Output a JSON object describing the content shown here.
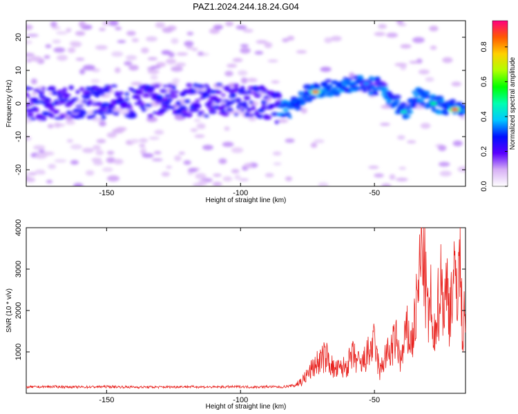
{
  "title": "PAZ1.2024.244.18.24.G04",
  "chart_data": [
    {
      "type": "heatmap",
      "xlabel": "Height of straight line (km)",
      "ylabel": "Frequency (Hz)",
      "xlim": [
        -180,
        -16
      ],
      "ylim": [
        -25,
        25
      ],
      "xticks": [
        -150,
        -100,
        -50
      ],
      "yticks": [
        -20,
        -10,
        0,
        10,
        20
      ],
      "colorbar": {
        "label": "Normalized spectral amplitude",
        "range": [
          0,
          0.95
        ],
        "ticks": [
          0.0,
          0.2,
          0.4,
          0.6,
          0.8
        ]
      },
      "ridge": [
        {
          "x": -175,
          "y": 0
        },
        {
          "x": -150,
          "y": 0.5
        },
        {
          "x": -120,
          "y": 1
        },
        {
          "x": -100,
          "y": 1
        },
        {
          "x": -90,
          "y": 0
        },
        {
          "x": -82,
          "y": -2
        },
        {
          "x": -75,
          "y": 3
        },
        {
          "x": -65,
          "y": 5
        },
        {
          "x": -55,
          "y": 6
        },
        {
          "x": -48,
          "y": 5
        },
        {
          "x": -42,
          "y": 0
        },
        {
          "x": -38,
          "y": -2
        },
        {
          "x": -34,
          "y": 3
        },
        {
          "x": -28,
          "y": 0
        },
        {
          "x": -16,
          "y": -2
        }
      ],
      "peaks": [
        {
          "x": -72,
          "y": 3.5,
          "amplitude": 0.85
        },
        {
          "x": -53,
          "y": 6,
          "amplitude": 0.35
        },
        {
          "x": -48,
          "y": 6,
          "amplitude": 0.3
        },
        {
          "x": -39,
          "y": -2.5,
          "amplitude": 0.45
        },
        {
          "x": -28,
          "y": 0,
          "amplitude": 0.5
        },
        {
          "x": -20,
          "y": -1.8,
          "amplitude": 0.92
        }
      ]
    },
    {
      "type": "line",
      "xlabel": "Height of straight line (km)",
      "ylabel": "SNR (10 * v/v)",
      "xlim": [
        -180,
        -16
      ],
      "ylim": [
        0,
        4000
      ],
      "xticks": [
        -150,
        -100,
        -50
      ],
      "yticks": [
        1000,
        2000,
        3000,
        4000
      ],
      "color": "#e8201c",
      "series": [
        {
          "x": [
            -180,
            -170,
            -160,
            -150,
            -140,
            -130,
            -120,
            -110,
            -100,
            -95,
            -90,
            -85,
            -80,
            -77,
            -75,
            -72,
            -70,
            -68,
            -65,
            -62,
            -60,
            -58,
            -55,
            -52,
            -50,
            -48,
            -46,
            -44,
            -42,
            -40,
            -38,
            -36,
            -34,
            -33,
            -32,
            -31,
            -30,
            -29,
            -28,
            -27,
            -26,
            -25,
            -24,
            -23,
            -22,
            -21,
            -20,
            -19,
            -18,
            -17,
            -16
          ],
          "values": [
            150,
            160,
            150,
            160,
            150,
            150,
            160,
            150,
            160,
            150,
            160,
            150,
            190,
            300,
            450,
            700,
            800,
            900,
            550,
            600,
            700,
            900,
            650,
            1000,
            1200,
            500,
            900,
            1000,
            1300,
            750,
            1500,
            1200,
            2200,
            3000,
            3900,
            2700,
            1800,
            2300,
            900,
            2000,
            2200,
            2800,
            2000,
            2600,
            2000,
            2600,
            2600,
            2800,
            3200,
            1300,
            2500
          ]
        }
      ]
    }
  ]
}
